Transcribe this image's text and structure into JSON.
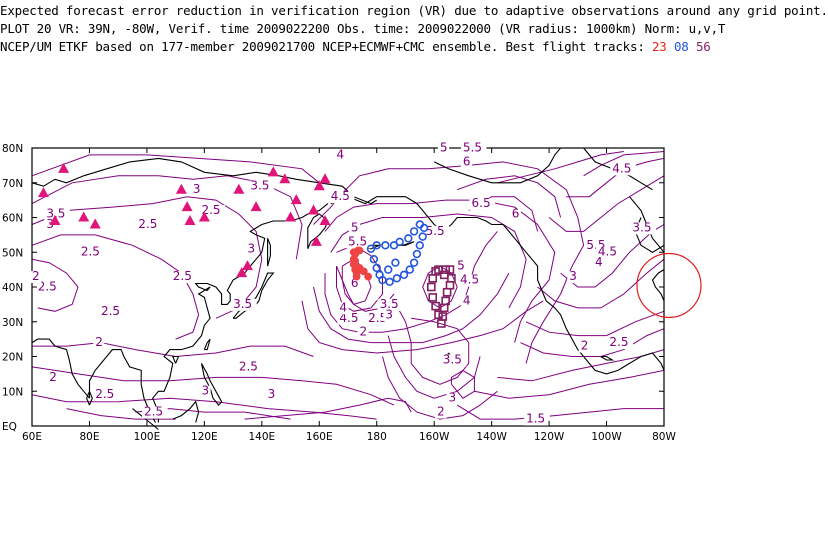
{
  "header": {
    "line1": "Expected forecast error reduction in verification region (VR) due to adaptive observations around any grid point.",
    "line2": "PLOT 20 VR: 39N, -80W, Verif. time 2009022200 Obs. time: 2009022000 (VR radius: 1000km) Norm: u,v,T",
    "line3_prefix": "NCEP/UM ETKF based on 177-member 2009021700 NCEP+ECMWF+CMC ensemble. Best flight tracks: ",
    "track_23": "23",
    "track_08": "08",
    "track_56": "56"
  },
  "colors": {
    "contour": "#800080",
    "coast": "#000000",
    "track_23": "#ee4444",
    "track_08": "#2255dd",
    "track_56": "#802060",
    "triangle": "#e0157a",
    "vr_circle": "#e02020"
  },
  "axes": {
    "lat_labels": [
      "80N",
      "70N",
      "60N",
      "50N",
      "40N",
      "30N",
      "20N",
      "10N",
      "EQ"
    ],
    "lon_labels": [
      "60E",
      "80E",
      "100E",
      "120E",
      "140E",
      "160E",
      "180",
      "160W",
      "140W",
      "120W",
      "100W",
      "80W"
    ]
  },
  "contour_labels": [
    {
      "text": "3.5",
      "lon": 65,
      "lat": 60
    },
    {
      "text": "3",
      "lon": 65,
      "lat": 57
    },
    {
      "text": "2.5",
      "lon": 62,
      "lat": 39
    },
    {
      "text": "2.5",
      "lon": 77,
      "lat": 49
    },
    {
      "text": "2",
      "lon": 60,
      "lat": 42
    },
    {
      "text": "2.5",
      "lon": 97,
      "lat": 57
    },
    {
      "text": "3",
      "lon": 116,
      "lat": 67
    },
    {
      "text": "2.5",
      "lon": 119,
      "lat": 61
    },
    {
      "text": "3.5",
      "lon": 136,
      "lat": 68
    },
    {
      "text": "3",
      "lon": 135,
      "lat": 50
    },
    {
      "text": "2.5",
      "lon": 109,
      "lat": 42
    },
    {
      "text": "3.5",
      "lon": 130,
      "lat": 34
    },
    {
      "text": "2.5",
      "lon": 84,
      "lat": 32
    },
    {
      "text": "2",
      "lon": 82,
      "lat": 23
    },
    {
      "text": "2",
      "lon": 66,
      "lat": 13
    },
    {
      "text": "2.5",
      "lon": 82,
      "lat": 8
    },
    {
      "text": "2.5",
      "lon": 99,
      "lat": 3
    },
    {
      "text": "3",
      "lon": 119,
      "lat": 9
    },
    {
      "text": "3",
      "lon": 142,
      "lat": 8
    },
    {
      "text": "2.5",
      "lon": 132,
      "lat": 16
    },
    {
      "text": "4.5",
      "lon": 164,
      "lat": 65
    },
    {
      "text": "4",
      "lon": 166,
      "lat": 77
    },
    {
      "text": "5.5",
      "lon": 170,
      "lat": 52
    },
    {
      "text": "5",
      "lon": 171,
      "lat": 56
    },
    {
      "text": "6",
      "lon": 171,
      "lat": 40
    },
    {
      "text": "4.5",
      "lon": 167,
      "lat": 30
    },
    {
      "text": "4",
      "lon": 167,
      "lat": 33
    },
    {
      "text": "3.5",
      "lon": 181,
      "lat": 34
    },
    {
      "text": "2.5",
      "lon": 177,
      "lat": 30
    },
    {
      "text": "3",
      "lon": 183,
      "lat": 31
    },
    {
      "text": "2",
      "lon": 174,
      "lat": 26
    },
    {
      "text": "5.5",
      "lon": 197,
      "lat": 55
    },
    {
      "text": "5",
      "lon": 208,
      "lat": 45
    },
    {
      "text": "4.5",
      "lon": 209,
      "lat": 41
    },
    {
      "text": "4",
      "lon": 210,
      "lat": 35
    },
    {
      "text": "3.5",
      "lon": 203,
      "lat": 18
    },
    {
      "text": "3",
      "lon": 205,
      "lat": 7
    },
    {
      "text": "2",
      "lon": 201,
      "lat": 3
    },
    {
      "text": "1.5",
      "lon": 232,
      "lat": 1
    },
    {
      "text": "5",
      "lon": 202,
      "lat": 79
    },
    {
      "text": "5.5",
      "lon": 210,
      "lat": 79
    },
    {
      "text": "6",
      "lon": 210,
      "lat": 75
    },
    {
      "text": "6.5",
      "lon": 213,
      "lat": 63
    },
    {
      "text": "6",
      "lon": 227,
      "lat": 60
    },
    {
      "text": "4.5",
      "lon": 262,
      "lat": 73
    },
    {
      "text": "5.5",
      "lon": 253,
      "lat": 51
    },
    {
      "text": "4.5",
      "lon": 257,
      "lat": 49
    },
    {
      "text": "4",
      "lon": 256,
      "lat": 46
    },
    {
      "text": "3.5",
      "lon": 269,
      "lat": 56
    },
    {
      "text": "3",
      "lon": 247,
      "lat": 42
    },
    {
      "text": "2.5",
      "lon": 261,
      "lat": 23
    },
    {
      "text": "2",
      "lon": 251,
      "lat": 22
    }
  ],
  "track_23": [
    [
      173,
      43
    ],
    [
      172.5,
      45
    ],
    [
      172,
      46.5
    ],
    [
      172,
      48
    ],
    [
      172.5,
      49.5
    ],
    [
      173.5,
      50.5
    ],
    [
      172.5,
      47.5
    ],
    [
      174,
      45.5
    ],
    [
      175.5,
      44.5
    ],
    [
      177,
      43
    ],
    [
      172,
      50
    ],
    [
      174,
      50.5
    ],
    [
      173,
      44
    ]
  ],
  "track_08": [
    [
      182,
      42
    ],
    [
      184.5,
      41.5
    ],
    [
      187,
      42.5
    ],
    [
      189.5,
      43.5
    ],
    [
      191.5,
      45
    ],
    [
      193,
      47
    ],
    [
      194,
      49.5
    ],
    [
      195,
      52
    ],
    [
      196,
      54.5
    ],
    [
      196.5,
      57
    ],
    [
      195,
      58
    ],
    [
      193,
      56
    ],
    [
      191,
      54
    ],
    [
      188,
      53
    ],
    [
      186,
      52
    ],
    [
      183,
      52
    ],
    [
      180,
      52
    ],
    [
      178,
      51
    ],
    [
      179,
      48
    ],
    [
      180,
      45.5
    ],
    [
      181,
      43.5
    ],
    [
      184,
      45
    ],
    [
      186.5,
      47
    ]
  ],
  "track_56": [
    [
      204,
      45
    ],
    [
      205.5,
      45
    ],
    [
      206,
      42.5
    ],
    [
      205.5,
      40.5
    ],
    [
      204.5,
      38.5
    ],
    [
      204,
      36
    ],
    [
      203.5,
      34
    ],
    [
      203,
      31.5
    ],
    [
      202.5,
      29.5
    ],
    [
      201.5,
      32
    ],
    [
      200.5,
      34.5
    ],
    [
      199.5,
      37
    ],
    [
      199,
      40
    ],
    [
      199.5,
      42.5
    ],
    [
      200.5,
      44.5
    ],
    [
      201.5,
      45
    ],
    [
      203.5,
      43.5
    ]
  ],
  "triangles": [
    [
      64,
      67
    ],
    [
      68,
      59
    ],
    [
      71,
      74
    ],
    [
      78,
      60
    ],
    [
      82,
      58
    ],
    [
      112,
      68
    ],
    [
      114,
      63
    ],
    [
      115,
      59
    ],
    [
      120,
      60
    ],
    [
      132,
      68
    ],
    [
      133,
      44
    ],
    [
      135,
      46
    ],
    [
      138,
      63
    ],
    [
      144,
      73
    ],
    [
      148,
      71
    ],
    [
      152,
      65
    ],
    [
      150,
      60
    ],
    [
      158,
      62
    ],
    [
      159,
      53
    ],
    [
      162,
      59
    ],
    [
      160,
      69
    ],
    [
      162,
      71
    ]
  ],
  "vr_circle": {
    "lon": 280,
    "lat": 39
  }
}
